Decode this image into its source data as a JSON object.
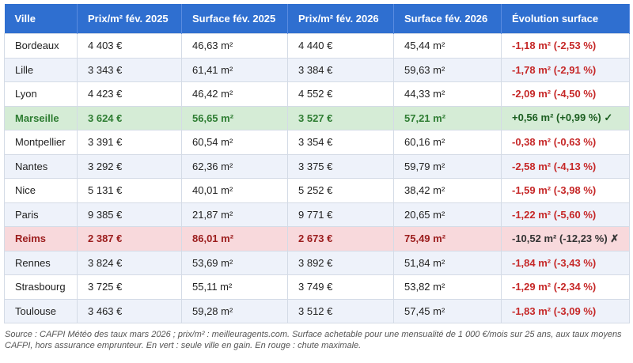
{
  "table": {
    "header": [
      "Ville",
      "Prix/m² fév. 2025",
      "Surface fév. 2025",
      "Prix/m² fév. 2026",
      "Surface fév. 2026",
      "Évolution surface"
    ],
    "rows": [
      [
        "Bordeaux",
        "4 403 €",
        "46,63 m²",
        "4 440 €",
        "45,44 m²",
        "-1,18 m² (-2,53 %)"
      ],
      [
        "Lille",
        "3 343 €",
        "61,41 m²",
        "3 384 €",
        "59,63 m²",
        "-1,78 m² (-2,91 %)"
      ],
      [
        "Lyon",
        "4 423 €",
        "46,42 m²",
        "4 552 €",
        "44,33 m²",
        "-2,09 m² (-4,50 %)"
      ],
      [
        "Marseille",
        "3 624 €",
        "56,65 m²",
        "3 527 €",
        "57,21 m²",
        "+0,56 m² (+0,99 %) ✓"
      ],
      [
        "Montpellier",
        "3 391 €",
        "60,54 m²",
        "3 354 €",
        "60,16 m²",
        "-0,38 m² (-0,63 %)"
      ],
      [
        "Nantes",
        "3 292 €",
        "62,36 m²",
        "3 375 €",
        "59,79 m²",
        "-2,58 m² (-4,13 %)"
      ],
      [
        "Nice",
        "5 131 €",
        "40,01 m²",
        "5 252 €",
        "38,42 m²",
        "-1,59 m² (-3,98 %)"
      ],
      [
        "Paris",
        "9 385 €",
        "21,87 m²",
        "9 771 €",
        "20,65 m²",
        "-1,22 m² (-5,60 %)"
      ],
      [
        "Reims",
        "2 387 €",
        "86,01 m²",
        "2 673 €",
        "75,49 m²",
        "-10,52 m² (-12,23 %) ✗"
      ],
      [
        "Rennes",
        "3 824 €",
        "53,69 m²",
        "3 892 €",
        "51,84 m²",
        "-1,84 m² (-3,43 %)"
      ],
      [
        "Strasbourg",
        "3 725 €",
        "55,11 m²",
        "3 749 €",
        "53,82 m²",
        "-1,29 m² (-2,34 %)"
      ],
      [
        "Toulouse",
        "3 463 €",
        "59,28 m²",
        "3 512 €",
        "57,45 m²",
        "-1,83 m² (-3,09 %)"
      ]
    ]
  },
  "footnote": "Source : CAFPI Météo des taux mars 2026 ; prix/m² : meilleuragents.com. Surface achetable pour une mensualité de 1 000 €/mois sur 25 ans, aux taux moyens CAFPI, hors assurance emprunteur. En vert : seule ville en gain. En rouge : chute maximale."
}
